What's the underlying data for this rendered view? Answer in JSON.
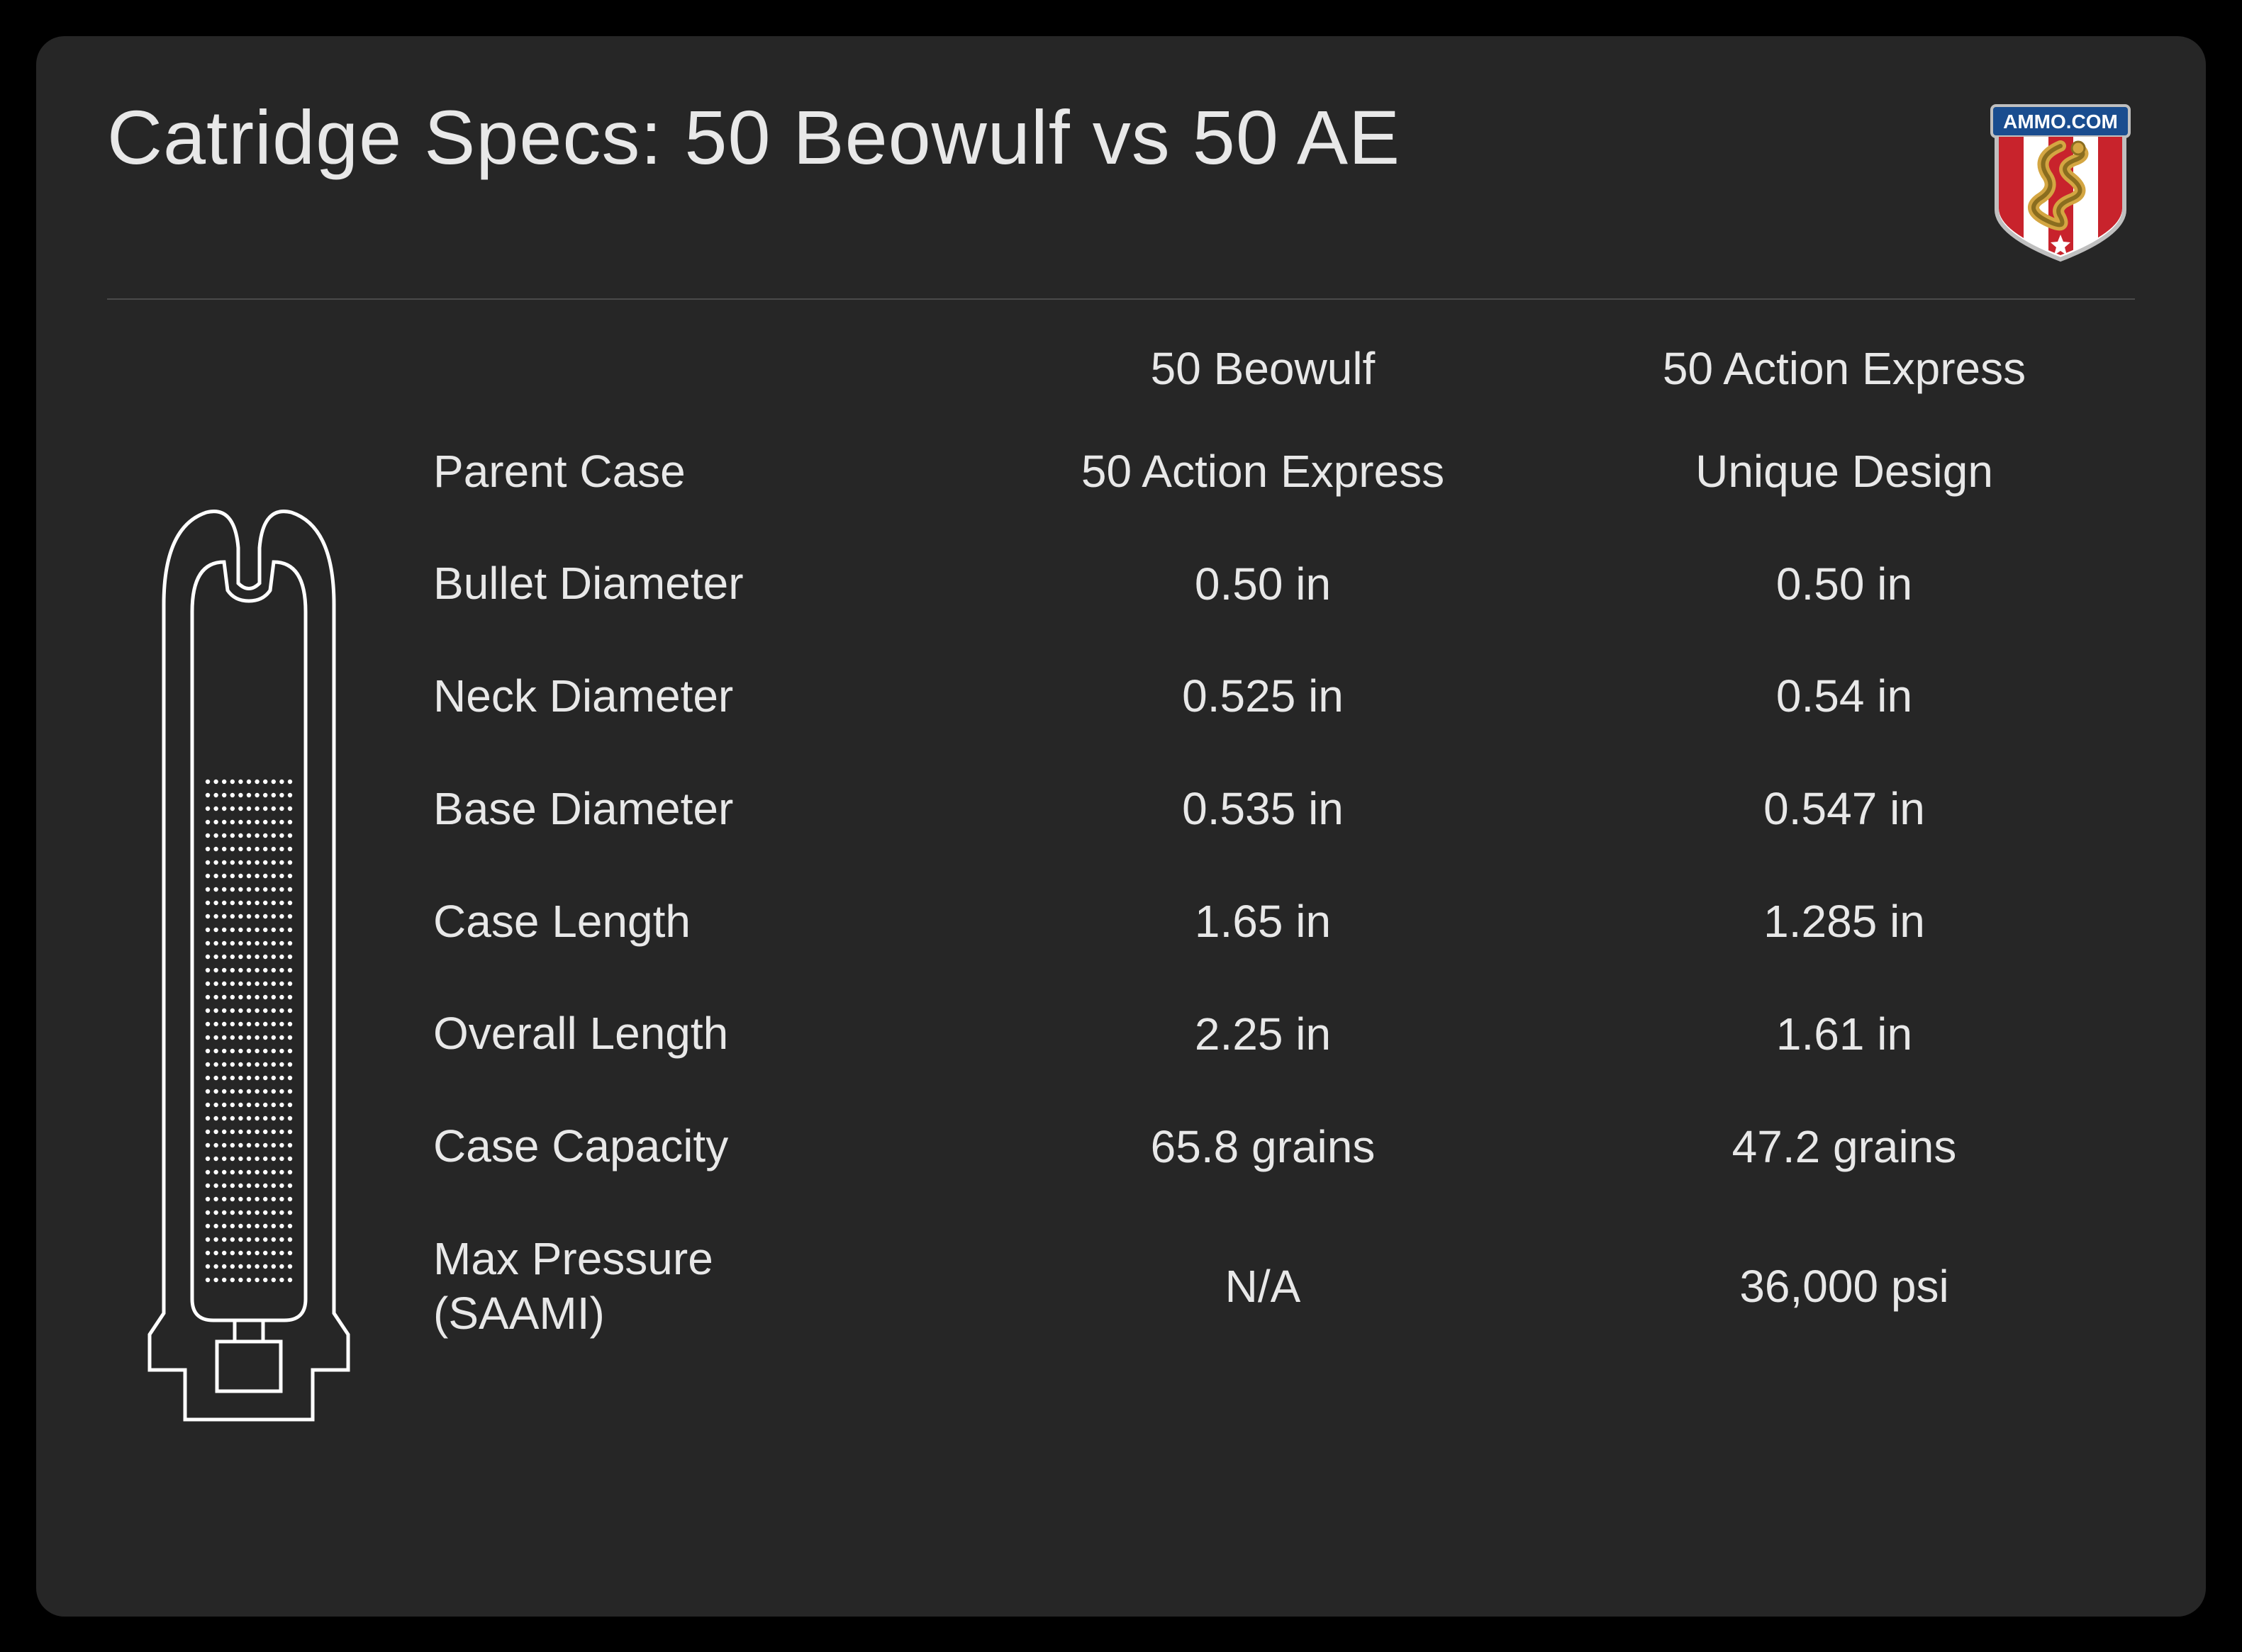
{
  "title": "Catridge Specs: 50 Beowulf vs 50 AE",
  "logo": {
    "text": "AMMO.COM",
    "colors": {
      "banner": "#1a4d8f",
      "stripe_red": "#c8232c",
      "stripe_white": "#ffffff",
      "snake_body": "#d4a642",
      "snake_dark": "#8a6d1f",
      "border": "#bfbfbf"
    }
  },
  "columns": {
    "col1": "50 Beowulf",
    "col2": "50 Action Express"
  },
  "rows": [
    {
      "label": "Parent Case",
      "v1": "50 Action Express",
      "v2": "Unique Design"
    },
    {
      "label": "Bullet Diameter",
      "v1": "0.50 in",
      "v2": "0.50 in"
    },
    {
      "label": "Neck Diameter",
      "v1": "0.525 in",
      "v2": "0.54 in"
    },
    {
      "label": "Base Diameter",
      "v1": "0.535 in",
      "v2": "0.547 in"
    },
    {
      "label": "Case Length",
      "v1": "1.65 in",
      "v2": "1.285 in"
    },
    {
      "label": "Overall Length",
      "v1": "2.25 in",
      "v2": "1.61 in"
    },
    {
      "label": "Case Capacity",
      "v1": "65.8 grains",
      "v2": "47.2 grains"
    },
    {
      "label": "Max Pressure (SAAMI)",
      "v1": "N/A",
      "v2": "36,000 psi"
    }
  ],
  "style": {
    "background": "#262626",
    "text_color": "#e8e8e8",
    "divider_color": "#4a4a4a",
    "diagram_stroke": "#ffffff",
    "title_fontsize": 108,
    "body_fontsize": 64,
    "border_radius": 40
  }
}
